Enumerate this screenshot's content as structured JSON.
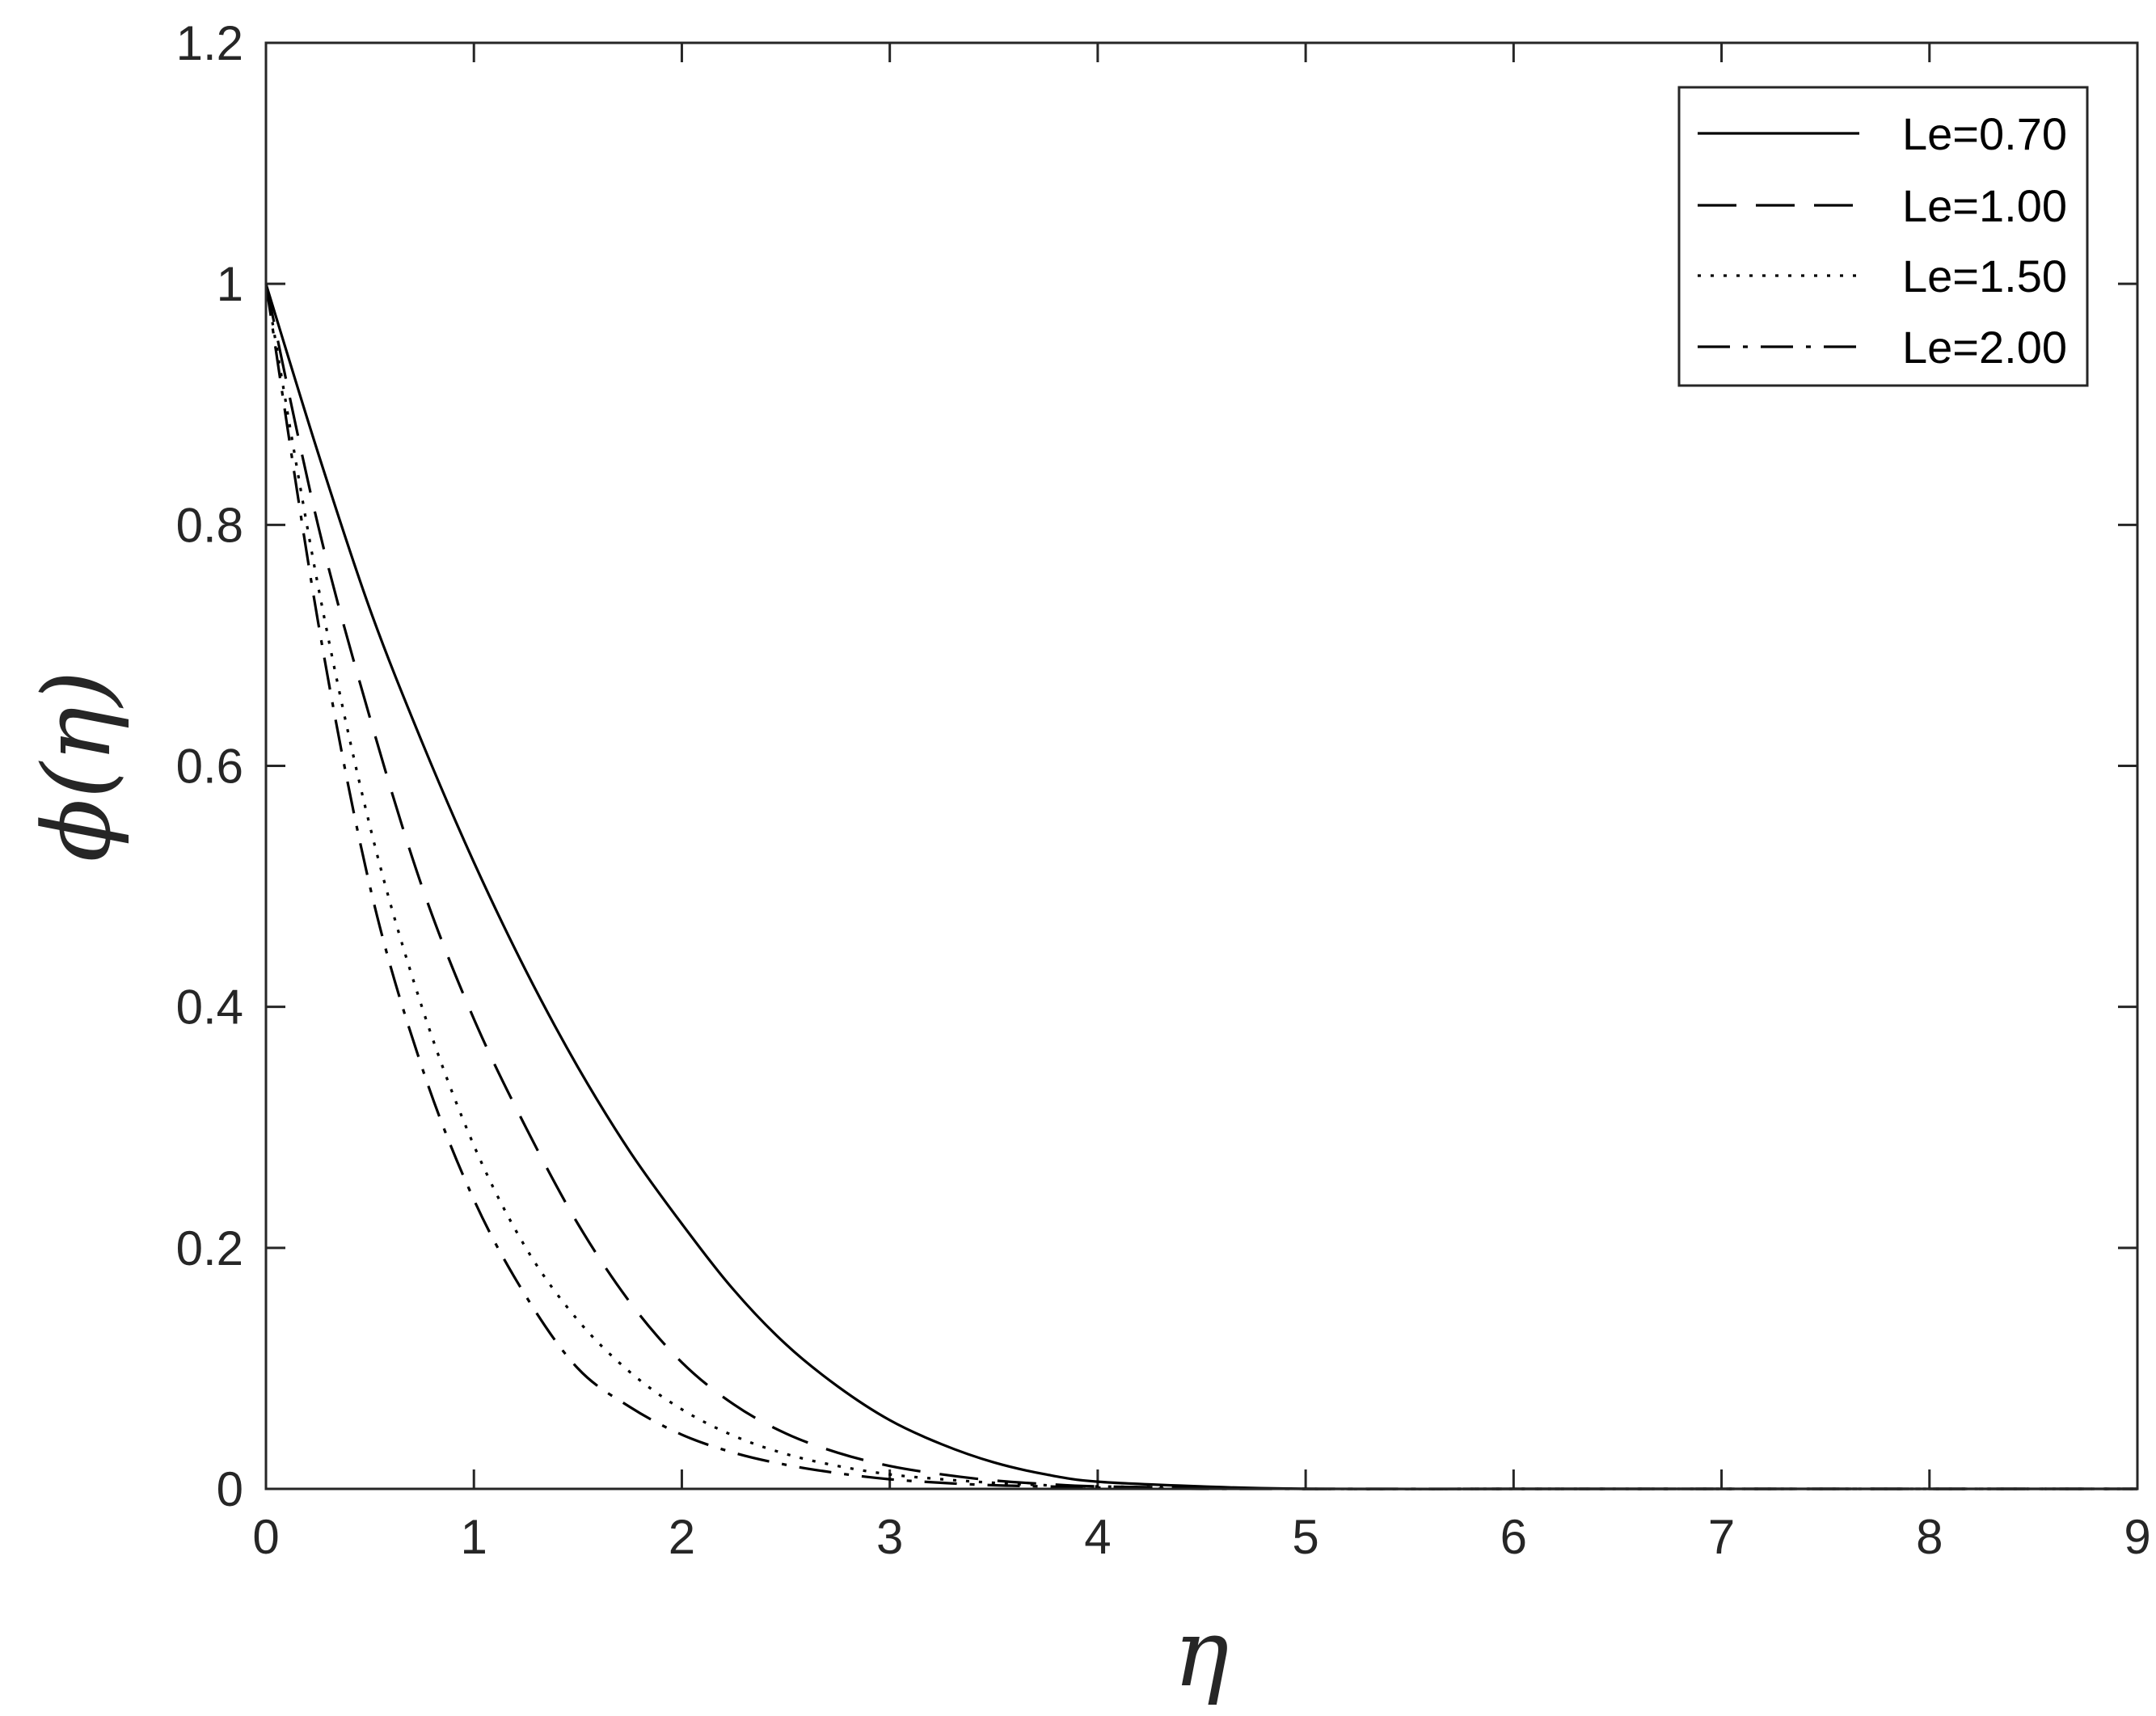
{
  "chart_data": {
    "type": "line",
    "title": "",
    "xlabel": "η",
    "ylabel": "ϕ(η)",
    "xlim": [
      0,
      9
    ],
    "ylim": [
      0,
      1.2
    ],
    "xticks": [
      "0",
      "1",
      "2",
      "3",
      "4",
      "5",
      "6",
      "7",
      "8",
      "9"
    ],
    "yticks": [
      "0",
      "0.2",
      "0.4",
      "0.6",
      "0.8",
      "1",
      "1.2"
    ],
    "grid": false,
    "legend_position": "top-right",
    "series": [
      {
        "name": "Le=0.70",
        "line_style": "solid",
        "x": [
          0,
          0.25,
          0.5,
          0.75,
          1.0,
          1.25,
          1.5,
          1.75,
          2.0,
          2.25,
          2.5,
          2.75,
          3.0,
          3.25,
          3.5,
          3.75,
          4.0,
          4.5,
          5.0,
          6.0,
          7.0,
          8.0,
          9.0
        ],
        "y": [
          1.0,
          0.86,
          0.73,
          0.62,
          0.52,
          0.43,
          0.35,
          0.28,
          0.22,
          0.165,
          0.12,
          0.085,
          0.057,
          0.037,
          0.022,
          0.012,
          0.006,
          0.002,
          0.0,
          0.0,
          0.0,
          0.0,
          0.0
        ]
      },
      {
        "name": "Le=1.00",
        "line_style": "dashed",
        "x": [
          0,
          0.25,
          0.5,
          0.75,
          1.0,
          1.25,
          1.5,
          1.75,
          2.0,
          2.25,
          2.5,
          2.75,
          3.0,
          3.25,
          3.5,
          3.75,
          4.0,
          4.5,
          5.0,
          6.0,
          7.0,
          8.0,
          9.0
        ],
        "y": [
          1.0,
          0.8,
          0.64,
          0.5,
          0.39,
          0.3,
          0.22,
          0.155,
          0.105,
          0.07,
          0.046,
          0.03,
          0.019,
          0.012,
          0.007,
          0.004,
          0.002,
          0.001,
          0.0,
          0.0,
          0.0,
          0.0,
          0.0
        ]
      },
      {
        "name": "Le=1.50",
        "line_style": "dotted",
        "x": [
          0,
          0.25,
          0.5,
          0.75,
          1.0,
          1.25,
          1.5,
          1.75,
          2.0,
          2.25,
          2.5,
          2.75,
          3.0,
          3.25,
          3.5,
          3.75,
          4.0,
          4.5,
          5.0,
          6.0,
          7.0,
          8.0,
          9.0
        ],
        "y": [
          1.0,
          0.75,
          0.55,
          0.4,
          0.285,
          0.2,
          0.14,
          0.097,
          0.066,
          0.044,
          0.029,
          0.019,
          0.012,
          0.008,
          0.005,
          0.003,
          0.002,
          0.001,
          0.0,
          0.0,
          0.0,
          0.0,
          0.0
        ]
      },
      {
        "name": "Le=2.00",
        "line_style": "dashdot",
        "x": [
          0,
          0.25,
          0.5,
          0.75,
          1.0,
          1.25,
          1.5,
          1.75,
          2.0,
          2.25,
          2.5,
          2.75,
          3.0,
          3.25,
          3.5,
          3.75,
          4.0,
          4.5,
          5.0,
          6.0,
          7.0,
          8.0,
          9.0
        ],
        "y": [
          1.0,
          0.72,
          0.5,
          0.35,
          0.24,
          0.16,
          0.1,
          0.068,
          0.045,
          0.03,
          0.02,
          0.013,
          0.008,
          0.005,
          0.003,
          0.002,
          0.001,
          0.0,
          0.0,
          0.0,
          0.0,
          0.0,
          0.0
        ]
      }
    ]
  }
}
